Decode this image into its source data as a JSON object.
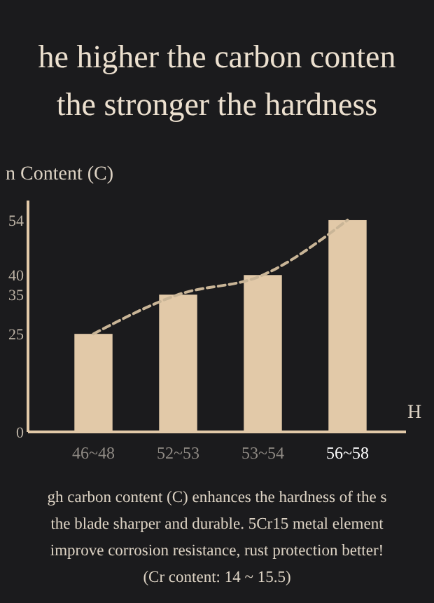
{
  "chart_data": {
    "type": "bar",
    "title": "he higher the carbon conten",
    "subtitle": "the stronger the hardness",
    "ylabel": "n Content (C)",
    "xlabel": "H",
    "categories": [
      "46~48",
      "52~53",
      "53~54",
      "56~58"
    ],
    "series": [
      {
        "color": "#e2c9a8",
        "values": [
          25,
          35,
          40,
          54
        ]
      },
      {
        "type": "line",
        "color": "#c9b597",
        "values": [
          25,
          35,
          40,
          54
        ]
      }
    ],
    "line_style": "dashed",
    "ylim": [
      0,
      59
    ],
    "yticks": [
      0,
      25,
      35,
      40,
      54
    ],
    "annotations": [
      "gh carbon content (C) enhances the hardness of the s",
      "the blade sharper and durable. 5Cr15 metal element",
      "improve corrosion resistance, rust protection better!",
      "(Cr content: 14 ~ 15.5)"
    ]
  }
}
